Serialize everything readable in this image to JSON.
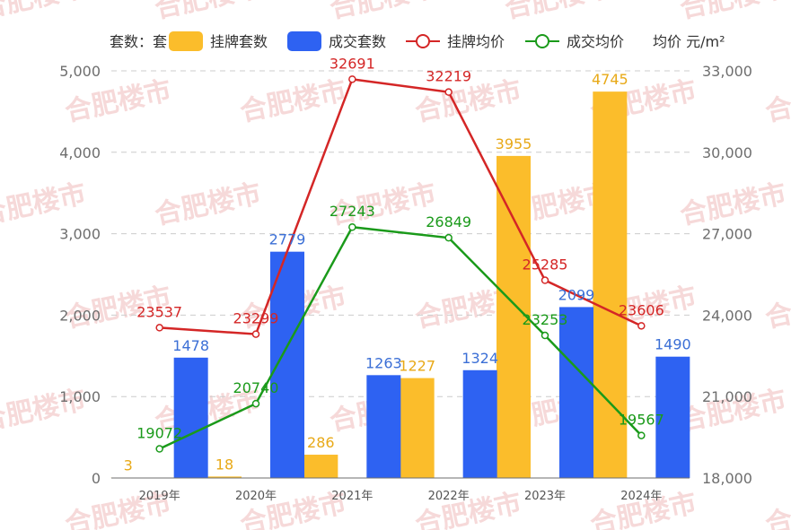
{
  "watermark": "合肥楼市",
  "chart_data": {
    "type": "bar",
    "categories": [
      "2019年",
      "2020年",
      "2021年",
      "2022年",
      "2023年",
      "2024年"
    ],
    "y_left": {
      "label": "套数：套",
      "ylim": [
        0,
        5000
      ],
      "ticks": [
        0,
        1000,
        2000,
        3000,
        4000,
        5000
      ],
      "tick_labels": [
        "0",
        "1,000",
        "2,000",
        "3,000",
        "4,000",
        "5,000"
      ]
    },
    "y_right": {
      "label": "均价 元/m²",
      "ylim": [
        18000,
        33000
      ],
      "ticks": [
        18000,
        21000,
        24000,
        27000,
        30000,
        33000
      ],
      "tick_labels": [
        "18,000",
        "21,000",
        "24,000",
        "27,000",
        "30,000",
        "33,000"
      ]
    },
    "grid": true,
    "legend_position": "top",
    "series": [
      {
        "name": "挂牌套数",
        "type": "bar",
        "axis": "left",
        "color": "#fbbd2b",
        "values": [
          3,
          18,
          286,
          1227,
          3955,
          4745
        ],
        "labels": [
          "3",
          "18",
          "286",
          "1227",
          "3955",
          "4745"
        ]
      },
      {
        "name": "成交套数",
        "type": "bar",
        "axis": "left",
        "color": "#2e62f2",
        "values": [
          1478,
          2779,
          1263,
          1324,
          2099,
          1490
        ],
        "labels": [
          "1478",
          "2779",
          "1263",
          "1324",
          "2099",
          "1490"
        ]
      },
      {
        "name": "挂牌均价",
        "type": "line",
        "axis": "right",
        "color": "#d42626",
        "values": [
          23537,
          23299,
          32691,
          32219,
          25285,
          23606
        ],
        "labels": [
          "23537",
          "23299",
          "32691",
          "32219",
          "25285",
          "23606"
        ]
      },
      {
        "name": "成交均价",
        "type": "line",
        "axis": "right",
        "color": "#1a9a1a",
        "values": [
          19072,
          20740,
          27243,
          26849,
          23253,
          19567
        ],
        "labels": [
          "19072",
          "20740",
          "27243",
          "26849",
          "23253",
          "19567"
        ]
      }
    ]
  }
}
